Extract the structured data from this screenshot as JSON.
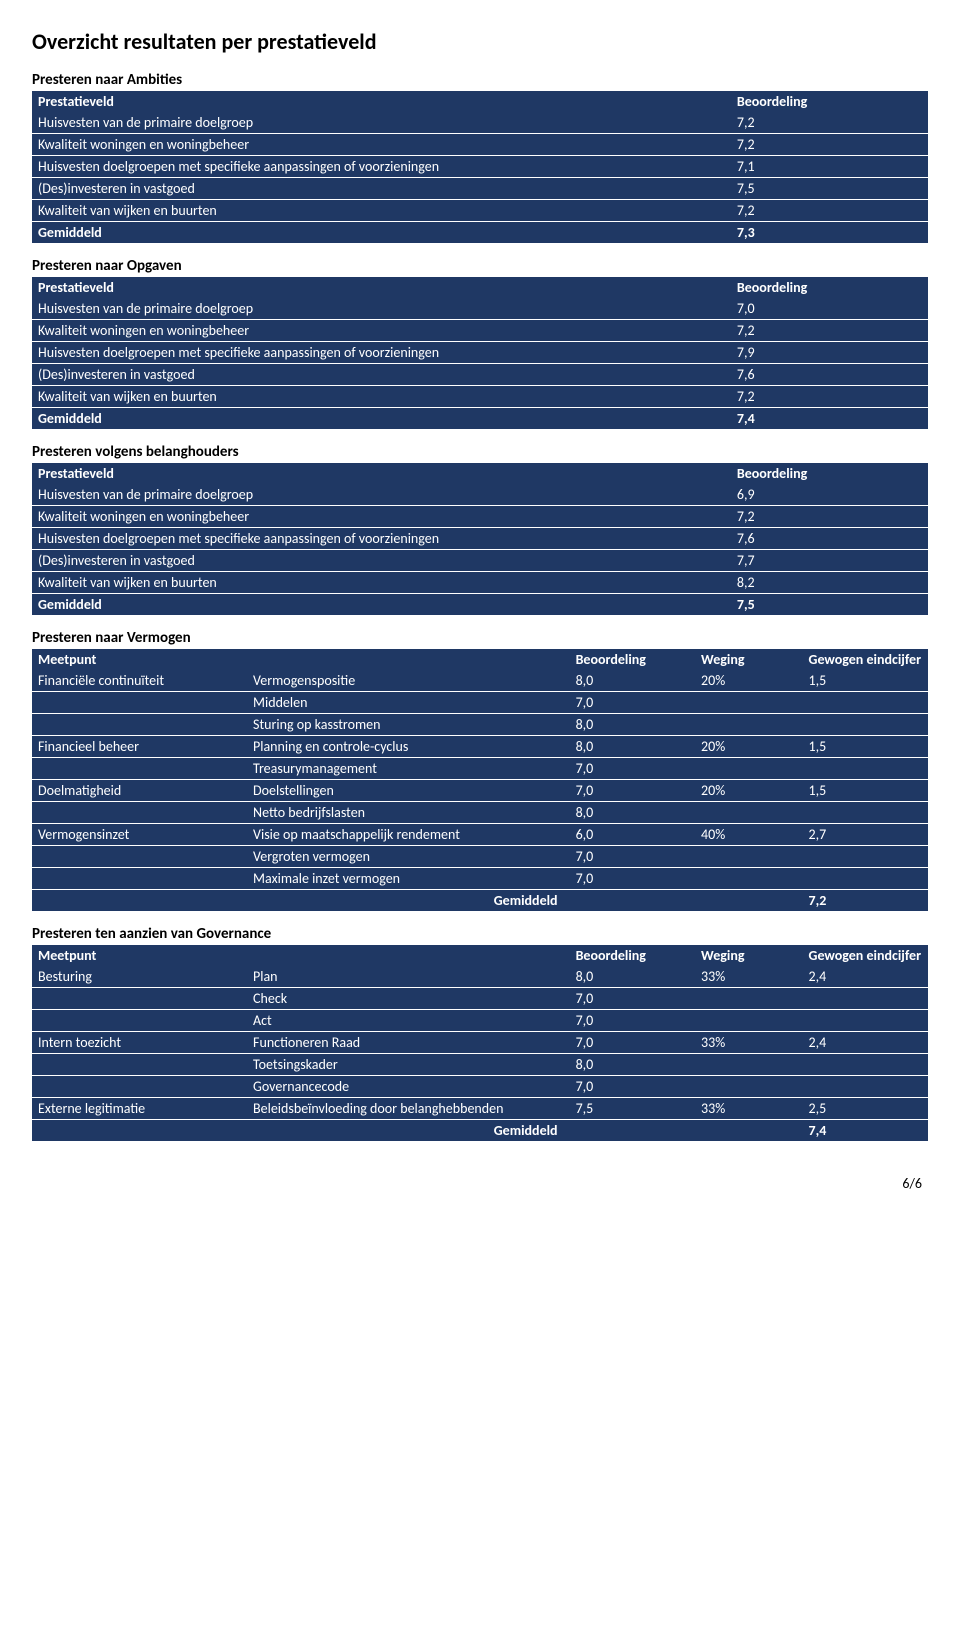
{
  "page": {
    "title": "Overzicht resultaten per prestatieveld",
    "pageNumber": "6/6"
  },
  "simpleSections": [
    {
      "title": "Presteren naar Ambities",
      "headers": {
        "label": "Prestatieveld",
        "score": "Beoordeling"
      },
      "rows": [
        {
          "label": "Huisvesten van de primaire doelgroep",
          "score": "7,2"
        },
        {
          "label": "Kwaliteit woningen en woningbeheer",
          "score": "7,2"
        },
        {
          "label": "Huisvesten doelgroepen met specifieke aanpassingen of voorzieningen",
          "score": "7,1"
        },
        {
          "label": "(Des)investeren in vastgoed",
          "score": "7,5"
        },
        {
          "label": "Kwaliteit van wijken en buurten",
          "score": "7,2"
        }
      ],
      "avg": {
        "label": "Gemiddeld",
        "score": "7,3"
      }
    },
    {
      "title": "Presteren naar Opgaven",
      "headers": {
        "label": "Prestatieveld",
        "score": "Beoordeling"
      },
      "rows": [
        {
          "label": "Huisvesten van de primaire doelgroep",
          "score": "7,0"
        },
        {
          "label": "Kwaliteit woningen en woningbeheer",
          "score": "7,2"
        },
        {
          "label": "Huisvesten doelgroepen met specifieke aanpassingen of voorzieningen",
          "score": "7,9"
        },
        {
          "label": "(Des)investeren in vastgoed",
          "score": "7,6"
        },
        {
          "label": "Kwaliteit van wijken en buurten",
          "score": "7,2"
        }
      ],
      "avg": {
        "label": "Gemiddeld",
        "score": "7,4"
      }
    },
    {
      "title": "Presteren volgens belanghouders",
      "headers": {
        "label": "Prestatieveld",
        "score": "Beoordeling"
      },
      "rows": [
        {
          "label": "Huisvesten van de primaire doelgroep",
          "score": "6,9"
        },
        {
          "label": "Kwaliteit woningen en woningbeheer",
          "score": "7,2"
        },
        {
          "label": "Huisvesten doelgroepen met specifieke aanpassingen of voorzieningen",
          "score": "7,6"
        },
        {
          "label": "(Des)investeren in vastgoed",
          "score": "7,7"
        },
        {
          "label": "Kwaliteit van wijken en buurten",
          "score": "8,2"
        }
      ],
      "avg": {
        "label": "Gemiddeld",
        "score": "7,5"
      }
    }
  ],
  "wideSections": [
    {
      "title": "Presteren naar Vermogen",
      "headers": {
        "c1": "Meetpunt",
        "c2": "",
        "c3": "Beoordeling",
        "c4": "Weging",
        "c5": "Gewogen eindcijfer"
      },
      "rows": [
        {
          "c1": "Financiële continuïteit",
          "c2": "Vermogenspositie",
          "c3": "8,0",
          "c4": "20%",
          "c5": "1,5"
        },
        {
          "c1": "",
          "c2": "Middelen",
          "c3": "7,0",
          "c4": "",
          "c5": ""
        },
        {
          "c1": "",
          "c2": "Sturing op kasstromen",
          "c3": "8,0",
          "c4": "",
          "c5": ""
        },
        {
          "c1": "Financieel beheer",
          "c2": "Planning en controle-cyclus",
          "c3": "8,0",
          "c4": "20%",
          "c5": "1,5"
        },
        {
          "c1": "",
          "c2": "Treasurymanagement",
          "c3": "7,0",
          "c4": "",
          "c5": ""
        },
        {
          "c1": "Doelmatigheid",
          "c2": "Doelstellingen",
          "c3": "7,0",
          "c4": "20%",
          "c5": "1,5"
        },
        {
          "c1": "",
          "c2": "Netto bedrijfslasten",
          "c3": "8,0",
          "c4": "",
          "c5": ""
        },
        {
          "c1": "Vermogensinzet",
          "c2": "Visie op maatschappelijk rendement",
          "c3": "6,0",
          "c4": "40%",
          "c5": "2,7"
        },
        {
          "c1": "",
          "c2": "Vergroten vermogen",
          "c3": "7,0",
          "c4": "",
          "c5": ""
        },
        {
          "c1": "",
          "c2": "Maximale inzet vermogen",
          "c3": "7,0",
          "c4": "",
          "c5": ""
        }
      ],
      "avg": {
        "label": "Gemiddeld",
        "score": "7,2"
      }
    },
    {
      "title": "Presteren ten aanzien van Governance",
      "headers": {
        "c1": "Meetpunt",
        "c2": "",
        "c3": "Beoordeling",
        "c4": "Weging",
        "c5": "Gewogen eindcijfer"
      },
      "rows": [
        {
          "c1": "Besturing",
          "c2": "Plan",
          "c3": "8,0",
          "c4": "33%",
          "c5": "2,4"
        },
        {
          "c1": "",
          "c2": "Check",
          "c3": "7,0",
          "c4": "",
          "c5": ""
        },
        {
          "c1": "",
          "c2": "Act",
          "c3": "7,0",
          "c4": "",
          "c5": ""
        },
        {
          "c1": "Intern toezicht",
          "c2": "Functioneren Raad",
          "c3": "7,0",
          "c4": "33%",
          "c5": "2,4"
        },
        {
          "c1": "",
          "c2": "Toetsingskader",
          "c3": "8,0",
          "c4": "",
          "c5": ""
        },
        {
          "c1": "",
          "c2": "Governancecode",
          "c3": "7,0",
          "c4": "",
          "c5": ""
        },
        {
          "c1": "Externe legitimatie",
          "c2": "Beleidsbeïnvloeding door belanghebbenden",
          "c3": "7,5",
          "c4": "33%",
          "c5": "2,5"
        }
      ],
      "avg": {
        "label": "Gemiddeld",
        "score": "7,4"
      }
    }
  ],
  "style": {
    "headerBg": "#1f3864",
    "headerFg": "#ffffff",
    "bodyBg": "#ffffff",
    "bodyFg": "#000000",
    "titleFontSize": 22,
    "sectionTitleFontSize": 15,
    "tableFontSize": 14
  }
}
